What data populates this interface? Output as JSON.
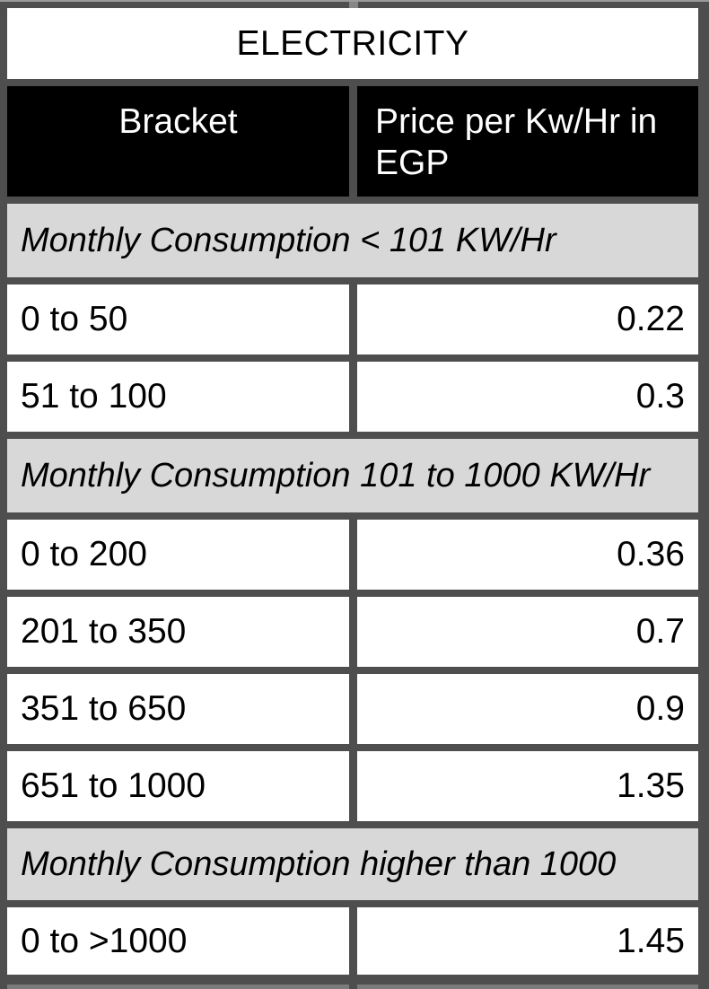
{
  "table": {
    "title": "ELECTRICITY",
    "columns": {
      "bracket": "Bracket",
      "price": "Price per Kw/Hr in EGP"
    },
    "sections": [
      {
        "label": "Monthly Consumption < 101 KW/Hr",
        "rows": [
          {
            "bracket": "0 to 50",
            "price": "0.22"
          },
          {
            "bracket": "51 to 100",
            "price": "0.3"
          }
        ]
      },
      {
        "label": "Monthly Consumption 101 to 1000 KW/Hr",
        "rows": [
          {
            "bracket": "0 to 200",
            "price": "0.36"
          },
          {
            "bracket": "201 to 350",
            "price": "0.7"
          },
          {
            "bracket": "351 to 650",
            "price": "0.9"
          },
          {
            "bracket": "651 to 1000",
            "price": "1.35"
          }
        ]
      },
      {
        "label": "Monthly Consumption higher than 1000",
        "rows": [
          {
            "bracket": "0 to >1000",
            "price": "1.45"
          }
        ]
      }
    ],
    "colors": {
      "gutter": "#4e4e4e",
      "header_bg": "#000000",
      "header_text": "#ffffff",
      "section_bg": "#d8d8d8",
      "cell_bg": "#ffffff",
      "cell_text": "#000000"
    }
  }
}
